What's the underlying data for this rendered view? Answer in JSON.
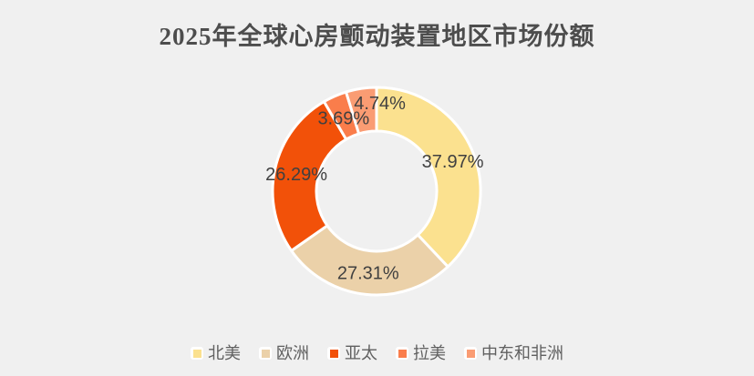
{
  "chart_data": {
    "type": "pie",
    "subtype": "donut",
    "title": "2025年全球心房颤动装置地区市场份额",
    "categories": [
      "北美",
      "欧洲",
      "亚太",
      "拉美",
      "中东和非洲"
    ],
    "values": [
      37.97,
      27.31,
      26.29,
      3.69,
      4.74
    ],
    "data_labels": [
      "37.97%",
      "27.31%",
      "26.29%",
      "3.69%",
      "4.74%"
    ],
    "unit": "%",
    "colors": [
      "#FBE18F",
      "#EBD1A9",
      "#F25109",
      "#FA7D4B",
      "#FA9C73"
    ],
    "start_angle": "top",
    "direction": "clockwise",
    "legend_position": "bottom",
    "legend_entries": [
      "北美",
      "欧洲",
      "亚太",
      "拉美",
      "中东和非洲"
    ],
    "background_color": "#F0F0F0",
    "title_color": "#4D4D4D",
    "label_color": "#404040",
    "legend_text_color": "#606060",
    "slice_stroke_color": "#FFFFFF"
  }
}
